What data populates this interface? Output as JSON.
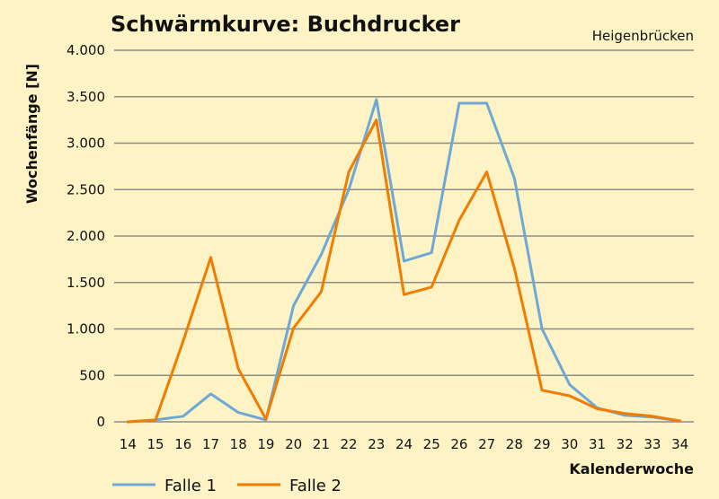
{
  "chart_data": {
    "type": "line",
    "title": "Schwärmkurve: Buchdrucker",
    "subtitle": "Heigenbrücken",
    "xlabel": "Kalenderwoche",
    "ylabel": "Wochenfänge [N]",
    "x": [
      14,
      15,
      16,
      17,
      18,
      19,
      20,
      21,
      22,
      23,
      24,
      25,
      26,
      27,
      28,
      29,
      30,
      31,
      32,
      33,
      34
    ],
    "x_tick_labels": [
      "14",
      "15",
      "16",
      "17",
      "18",
      "19",
      "20",
      "21",
      "22",
      "23",
      "24",
      "25",
      "26",
      "27",
      "28",
      "29",
      "30",
      "31",
      "32",
      "33",
      "34"
    ],
    "ylim": [
      0,
      4000
    ],
    "y_ticks": [
      0,
      500,
      1000,
      1500,
      2000,
      2500,
      3000,
      3500,
      4000
    ],
    "y_tick_labels": [
      "0",
      "500",
      "1.000",
      "1.500",
      "2.000",
      "2.500",
      "3.000",
      "3.500",
      "4.000"
    ],
    "grid": true,
    "legend_position": "bottom-left",
    "series": [
      {
        "name": "Falle 1",
        "color": "#6fa8d6",
        "values": [
          0,
          20,
          60,
          300,
          100,
          20,
          1250,
          1800,
          2500,
          3470,
          1730,
          1820,
          3430,
          3430,
          2620,
          1000,
          400,
          150,
          70,
          50,
          10
        ]
      },
      {
        "name": "Falle 2",
        "color": "#f07c00",
        "values": [
          0,
          20,
          870,
          1770,
          570,
          30,
          1010,
          1400,
          2690,
          3250,
          1370,
          1450,
          2170,
          2690,
          1650,
          340,
          280,
          140,
          90,
          60,
          10
        ]
      }
    ]
  }
}
